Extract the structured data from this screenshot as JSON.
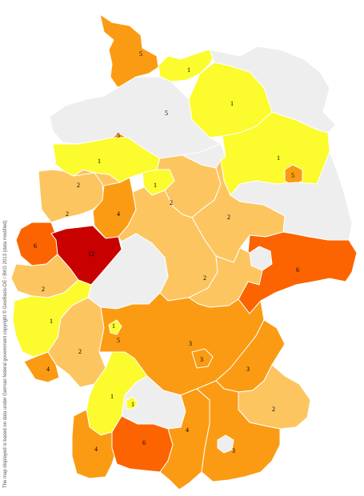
{
  "credit": "The map displayed is based on data under German federal government copyright © GeoBasis-DE / BKG 2013 (data modified)",
  "colors": {
    "none": "#eeeeee",
    "c1": "#fbfb2e",
    "c2": "#fcc560",
    "c3": "#fb9b13",
    "c4": "#fb9b13",
    "c5": "#fb9b13",
    "c6": "#fb6400",
    "c12": "#c80000"
  },
  "regions": [
    {
      "name": "schleswig-holstein",
      "label": "5",
      "value": 5
    },
    {
      "name": "hamburg",
      "label": "5",
      "value": 5
    },
    {
      "name": "mecklenburg-west",
      "label": "1",
      "value": 1
    },
    {
      "name": "mecklenburg-east",
      "label": "",
      "value": 0
    },
    {
      "name": "brandenburg-north",
      "label": "1",
      "value": 1
    },
    {
      "name": "berlin",
      "label": "5",
      "value": 5
    },
    {
      "name": "brandenburg-south",
      "label": "1",
      "value": 1
    },
    {
      "name": "lower-saxony-north",
      "label": "",
      "value": 0
    },
    {
      "name": "lower-saxony-east",
      "label": "",
      "value": 0
    },
    {
      "name": "bremen",
      "label": "5",
      "value": 5
    },
    {
      "name": "lower-saxony-west",
      "label": "1",
      "value": 1
    },
    {
      "name": "lower-saxony-south",
      "label": "1",
      "value": 1
    },
    {
      "name": "saxony-anhalt",
      "label": "2",
      "value": 2
    },
    {
      "name": "saxony-anhalt-east",
      "label": "2",
      "value": 2
    },
    {
      "name": "saxony-north",
      "label": "",
      "value": 0
    },
    {
      "name": "saxony",
      "label": "6",
      "value": 6
    },
    {
      "name": "nrw-west",
      "label": "2",
      "value": 2
    },
    {
      "name": "nrw-northwest",
      "label": "2",
      "value": 2
    },
    {
      "name": "nrw-east",
      "label": "4",
      "value": 4
    },
    {
      "name": "nrw-southwest",
      "label": "6",
      "value": 6
    },
    {
      "name": "nrw-ruhr",
      "label": "12",
      "value": 12
    },
    {
      "name": "hesse",
      "label": "",
      "value": 0
    },
    {
      "name": "thuringia",
      "label": "2",
      "value": 2
    },
    {
      "name": "rhineland-north",
      "label": "2",
      "value": 2
    },
    {
      "name": "rhineland-south",
      "label": "1",
      "value": 1
    },
    {
      "name": "saarland",
      "label": "4",
      "value": 4
    },
    {
      "name": "palatinate",
      "label": "2",
      "value": 2
    },
    {
      "name": "franconia",
      "label": "5",
      "value": 5
    },
    {
      "name": "franconia-small",
      "label": "1",
      "value": 1
    },
    {
      "name": "bavaria-north",
      "label": "3",
      "value": 3
    },
    {
      "name": "nuremberg",
      "label": "3",
      "value": 3
    },
    {
      "name": "bavaria-east",
      "label": "3",
      "value": 3
    },
    {
      "name": "lower-bavaria",
      "label": "2",
      "value": 2
    },
    {
      "name": "bw-north",
      "label": "1",
      "value": 1
    },
    {
      "name": "bw-center",
      "label": "",
      "value": 0
    },
    {
      "name": "bw-small",
      "label": "1",
      "value": 1
    },
    {
      "name": "bw-southwest",
      "label": "4",
      "value": 4
    },
    {
      "name": "bw-south",
      "label": "6",
      "value": 6
    },
    {
      "name": "swabia",
      "label": "4",
      "value": 4
    },
    {
      "name": "upper-bavaria",
      "label": "3",
      "value": 3
    },
    {
      "name": "munich",
      "label": "",
      "value": 0
    }
  ]
}
